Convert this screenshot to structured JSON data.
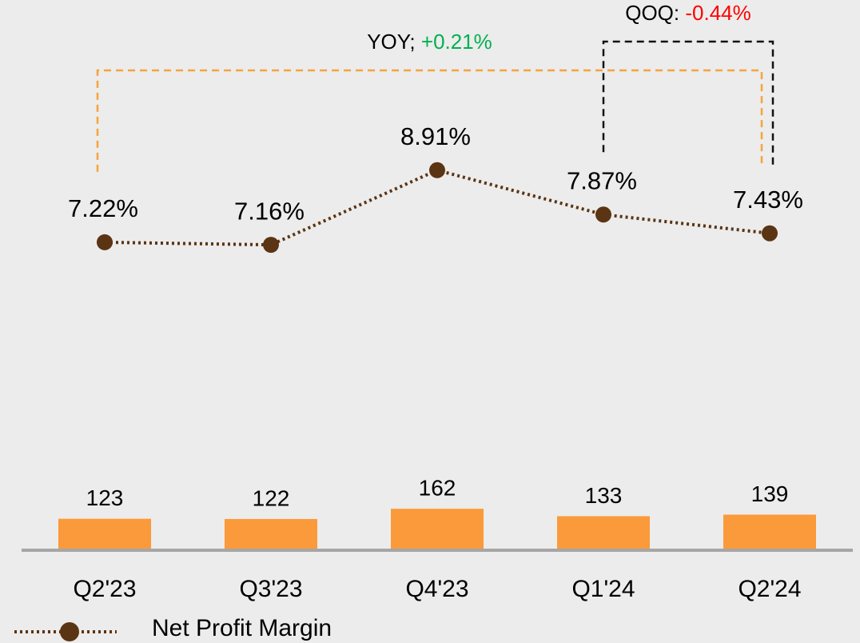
{
  "chart_data": {
    "type": "bar_line",
    "categories": [
      "Q2'23",
      "Q3'23",
      "Q4'23",
      "Q1'24",
      "Q2'24"
    ],
    "series": [
      {
        "type": "bar",
        "axis": "y",
        "color": "#fb9a3a",
        "values": [
          123,
          122,
          162,
          133,
          139
        ]
      },
      {
        "type": "line",
        "axis": "y2",
        "name": "Net Profit Margin",
        "color": "#5b3413",
        "values": [
          7.22,
          7.16,
          8.91,
          7.87,
          7.43
        ],
        "value_labels": [
          "7.22%",
          "7.16%",
          "8.91%",
          "7.87%",
          "7.43%"
        ]
      }
    ],
    "ylim": [
      0,
      2000
    ],
    "y2lim": [
      0,
      12
    ],
    "annotations": [
      {
        "text": "YOY;",
        "delta": "+0.21%",
        "color": "#00b050",
        "from": 0,
        "to": 4,
        "line_color": "#f5a33c"
      },
      {
        "text": "QOQ:",
        "delta": "-0.44%",
        "color": "#ff0000",
        "from": 3,
        "to": 4,
        "line_color": "#111111"
      }
    ]
  }
}
